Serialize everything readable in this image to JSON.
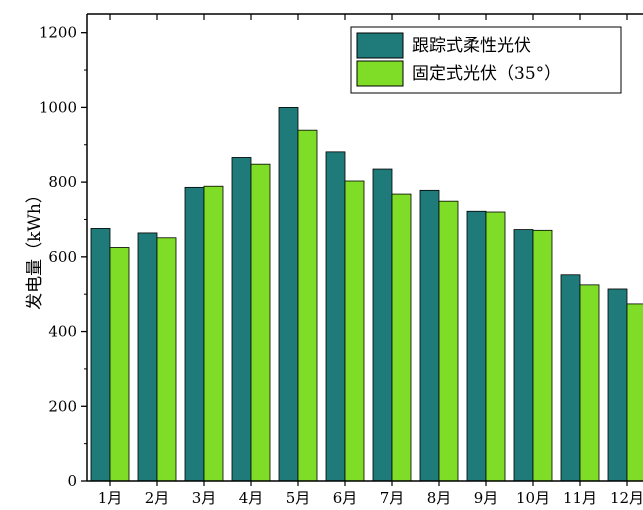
{
  "chart_data": {
    "type": "bar",
    "title": "",
    "xlabel": "",
    "ylabel": "发电量（kWh）",
    "categories": [
      "1月",
      "2月",
      "3月",
      "4月",
      "5月",
      "6月",
      "7月",
      "8月",
      "9月",
      "10月",
      "11月",
      "12月"
    ],
    "series": [
      {
        "name": "跟踪式柔性光伏",
        "color": "#1f7a7a",
        "values": [
          676,
          664,
          786,
          866,
          1000,
          881,
          835,
          778,
          722,
          673,
          552,
          514
        ]
      },
      {
        "name": "固定式光伏（35°）",
        "color": "#7fdd28",
        "values": [
          625,
          651,
          789,
          848,
          939,
          803,
          768,
          749,
          720,
          671,
          525,
          474
        ]
      }
    ],
    "ylim": [
      0,
      1250
    ],
    "yticks": [
      0,
      200,
      400,
      600,
      800,
      1000,
      1200
    ],
    "grid": false,
    "legend_position": "top-right"
  }
}
